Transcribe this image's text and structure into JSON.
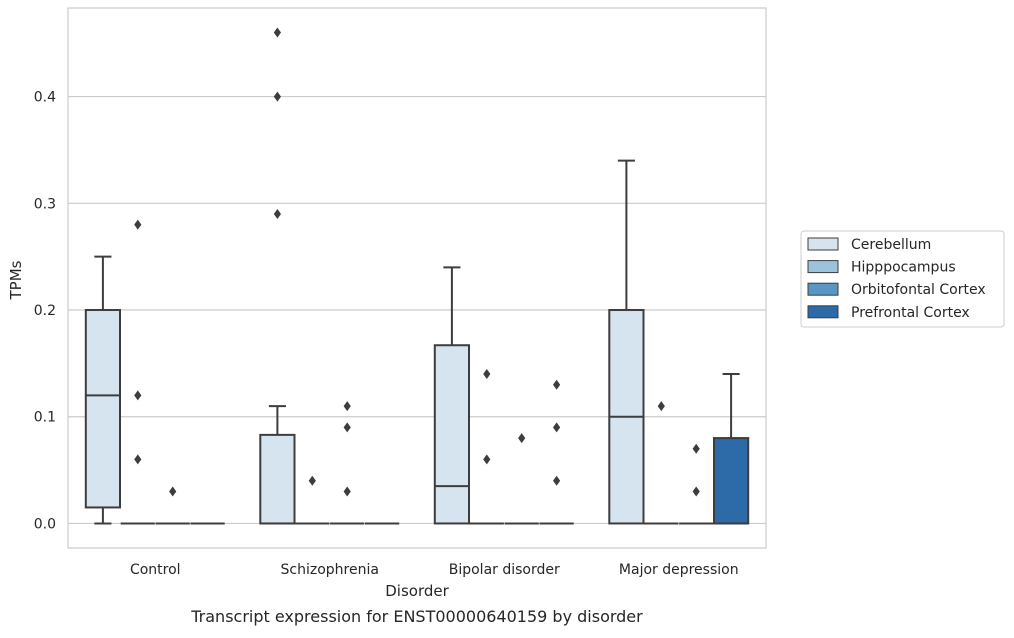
{
  "chart_data": {
    "type": "boxplot",
    "caption": "Transcript expression for ENST00000640159 by disorder",
    "xlabel": "Disorder",
    "ylabel": "TPMs",
    "ylim": [
      -0.023,
      0.483
    ],
    "yticks": [
      0.0,
      0.1,
      0.2,
      0.3,
      0.4
    ],
    "ytick_labels": [
      "0.0",
      "0.1",
      "0.2",
      "0.3",
      "0.4"
    ],
    "grid": "horizontal",
    "legend_position": "right",
    "categories": [
      "Control",
      "Schizophrenia",
      "Bipolar disorder",
      "Major depression"
    ],
    "series": [
      {
        "name": "Cerebellum",
        "color": "#d6e4f0",
        "boxes": [
          {
            "whisker_low": 0.0,
            "q1": 0.015,
            "median": 0.12,
            "q3": 0.2,
            "whisker_high": 0.25,
            "outliers": []
          },
          {
            "whisker_low": 0.0,
            "q1": 0.0,
            "median": 0.0,
            "q3": 0.083,
            "whisker_high": 0.11,
            "outliers": [
              0.29,
              0.4,
              0.46
            ]
          },
          {
            "whisker_low": 0.0,
            "q1": 0.0,
            "median": 0.035,
            "q3": 0.167,
            "whisker_high": 0.24,
            "outliers": []
          },
          {
            "whisker_low": 0.0,
            "q1": 0.0,
            "median": 0.1,
            "q3": 0.2,
            "whisker_high": 0.34,
            "outliers": []
          }
        ]
      },
      {
        "name": "Hipppocampus",
        "color": "#9bc3dc",
        "boxes": [
          {
            "whisker_low": 0.0,
            "q1": 0.0,
            "median": 0.0,
            "q3": 0.0,
            "whisker_high": 0.0,
            "outliers": [
              0.06,
              0.12,
              0.28
            ]
          },
          {
            "whisker_low": 0.0,
            "q1": 0.0,
            "median": 0.0,
            "q3": 0.0,
            "whisker_high": 0.0,
            "outliers": [
              0.04
            ]
          },
          {
            "whisker_low": 0.0,
            "q1": 0.0,
            "median": 0.0,
            "q3": 0.0,
            "whisker_high": 0.0,
            "outliers": [
              0.06,
              0.14
            ]
          },
          {
            "whisker_low": 0.0,
            "q1": 0.0,
            "median": 0.0,
            "q3": 0.0,
            "whisker_high": 0.0,
            "outliers": [
              0.11
            ]
          }
        ]
      },
      {
        "name": "Orbitofontal Cortex",
        "color": "#5a96c3",
        "boxes": [
          {
            "whisker_low": 0.0,
            "q1": 0.0,
            "median": 0.0,
            "q3": 0.0,
            "whisker_high": 0.0,
            "outliers": [
              0.03
            ]
          },
          {
            "whisker_low": 0.0,
            "q1": 0.0,
            "median": 0.0,
            "q3": 0.0,
            "whisker_high": 0.0,
            "outliers": [
              0.03,
              0.09,
              0.11
            ]
          },
          {
            "whisker_low": 0.0,
            "q1": 0.0,
            "median": 0.0,
            "q3": 0.0,
            "whisker_high": 0.0,
            "outliers": [
              0.08
            ]
          },
          {
            "whisker_low": 0.0,
            "q1": 0.0,
            "median": 0.0,
            "q3": 0.0,
            "whisker_high": 0.0,
            "outliers": [
              0.03,
              0.07
            ]
          }
        ]
      },
      {
        "name": "Prefrontal Cortex",
        "color": "#2c6aa8",
        "boxes": [
          {
            "whisker_low": 0.0,
            "q1": 0.0,
            "median": 0.0,
            "q3": 0.0,
            "whisker_high": 0.0,
            "outliers": []
          },
          {
            "whisker_low": 0.0,
            "q1": 0.0,
            "median": 0.0,
            "q3": 0.0,
            "whisker_high": 0.0,
            "outliers": []
          },
          {
            "whisker_low": 0.0,
            "q1": 0.0,
            "median": 0.0,
            "q3": 0.0,
            "whisker_high": 0.0,
            "outliers": [
              0.04,
              0.09,
              0.13
            ]
          },
          {
            "whisker_low": 0.0,
            "q1": 0.0,
            "median": 0.0,
            "q3": 0.08,
            "whisker_high": 0.14,
            "outliers": []
          }
        ]
      }
    ]
  }
}
